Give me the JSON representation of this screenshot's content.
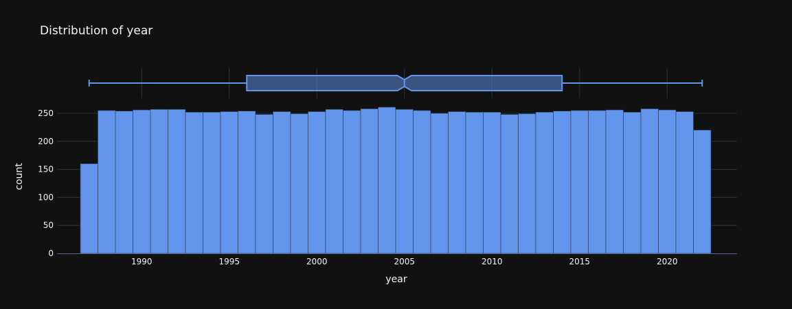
{
  "chart_data": {
    "type": "bar",
    "title": "Distribution of year",
    "xlabel": "year",
    "ylabel": "count",
    "bar_color": "#6495ED",
    "background": "#111111",
    "grid_color": "#283442",
    "text_color": "#f2f5fa",
    "bin_start": 1986.5,
    "bin_width": 1,
    "xlim": [
      1986.5,
      2022.5
    ],
    "ylim": [
      0,
      262
    ],
    "x_ticks": [
      1990,
      1995,
      2000,
      2005,
      2010,
      2015,
      2020
    ],
    "y_ticks": [
      0,
      50,
      100,
      150,
      200,
      250
    ],
    "categories": [
      1987,
      1988,
      1989,
      1990,
      1991,
      1992,
      1993,
      1994,
      1995,
      1996,
      1997,
      1998,
      1999,
      2000,
      2001,
      2002,
      2003,
      2004,
      2005,
      2006,
      2007,
      2008,
      2009,
      2010,
      2011,
      2012,
      2013,
      2014,
      2015,
      2016,
      2017,
      2018,
      2019,
      2020,
      2021,
      2022
    ],
    "values": [
      160,
      255,
      254,
      256,
      257,
      257,
      252,
      252,
      253,
      254,
      248,
      253,
      249,
      253,
      257,
      255,
      258,
      261,
      257,
      255,
      250,
      253,
      252,
      252,
      248,
      249,
      252,
      254,
      255,
      255,
      256,
      252,
      258,
      256,
      253,
      220
    ],
    "box": {
      "min": 1987,
      "q1": 1996,
      "median": 2005,
      "q3": 2014,
      "max": 2022,
      "notch_low": 2004.6,
      "notch_high": 2005.4
    }
  }
}
